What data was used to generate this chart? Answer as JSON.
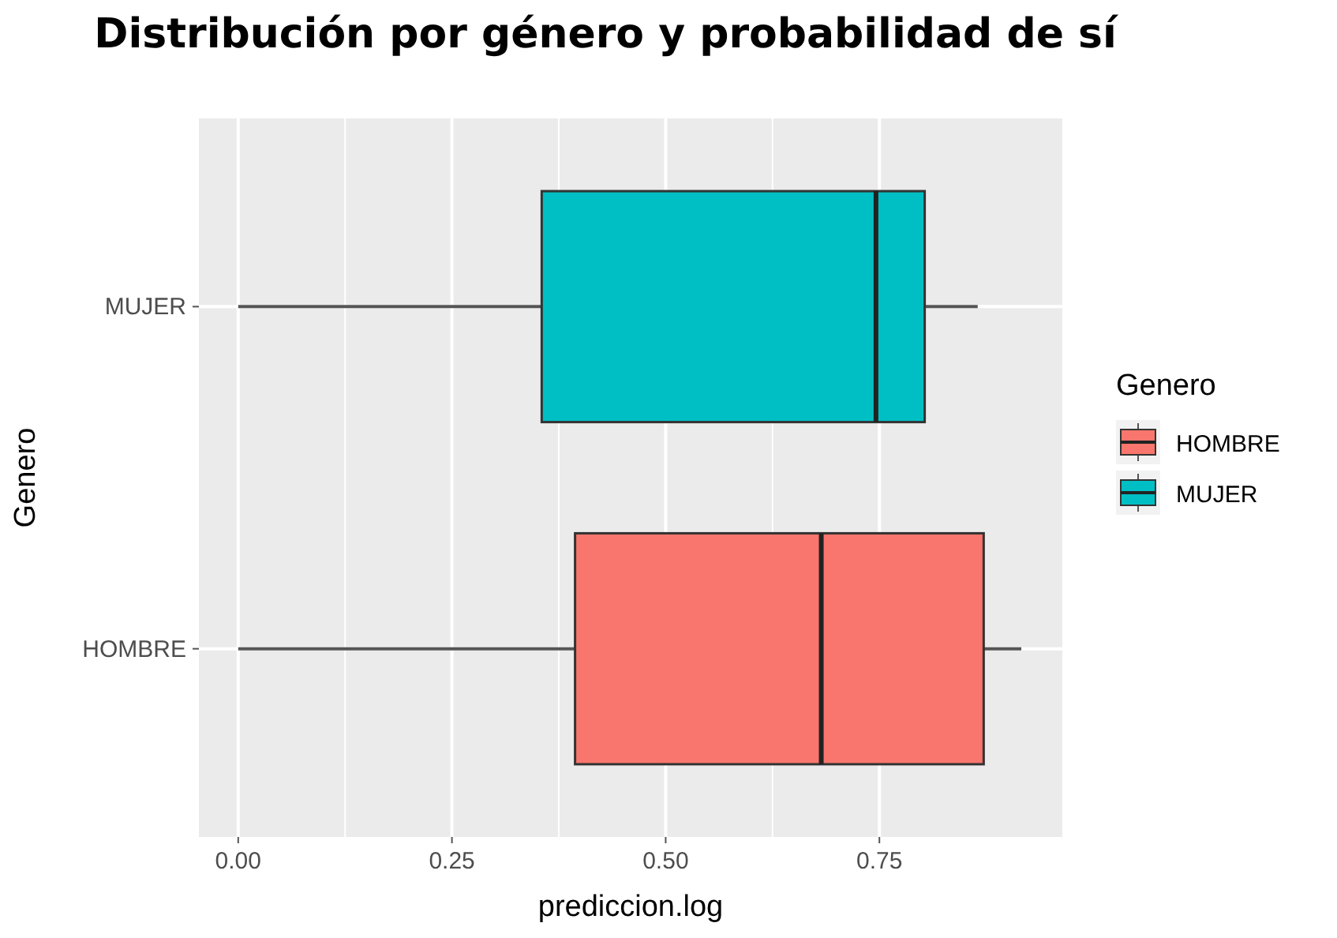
{
  "chart_data": {
    "type": "box",
    "title": "Distribución por género y probabilidad de sí",
    "xlabel": "prediccion.log",
    "ylabel": "Genero",
    "legend_title": "Genero",
    "orientation": "horizontal",
    "categories": [
      "MUJER",
      "HOMBRE"
    ],
    "series": [
      {
        "name": "HOMBRE",
        "color": "#f8766d",
        "boxes": [
          null,
          {
            "low": 0.0,
            "q1": 0.394,
            "median": 0.682,
            "q3": 0.872,
            "high": 0.916
          }
        ]
      },
      {
        "name": "MUJER",
        "color": "#00bfc4",
        "boxes": [
          {
            "low": 0.0,
            "q1": 0.355,
            "median": 0.746,
            "q3": 0.803,
            "high": 0.865
          },
          null
        ]
      }
    ],
    "xlim": [
      -0.046,
      0.964
    ],
    "xticks": [
      {
        "value": 0,
        "label": "0.00"
      },
      {
        "value": 0.25,
        "label": "0.25"
      },
      {
        "value": 0.5,
        "label": "0.50"
      },
      {
        "value": 0.75,
        "label": "0.75"
      }
    ],
    "grid": true,
    "legend": "right"
  }
}
